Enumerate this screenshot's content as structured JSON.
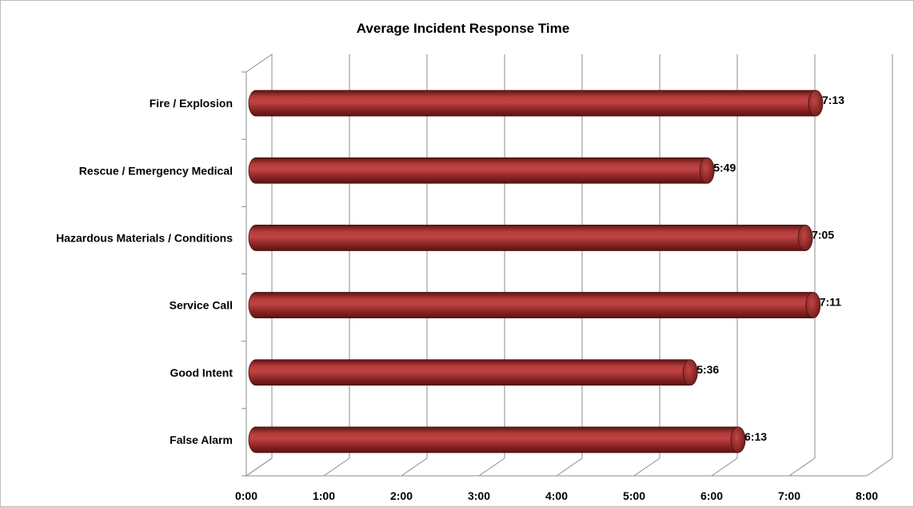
{
  "chart_data": {
    "type": "bar",
    "orientation": "horizontal",
    "style": "3d-cylinder",
    "title": "Average Incident Response Time",
    "xlabel": "",
    "ylabel": "",
    "categories": [
      "Fire / Explosion",
      "Rescue / Emergency Medical",
      "Hazardous Materials / Conditions",
      "Service Call",
      "Good Intent",
      "False Alarm"
    ],
    "values": [
      "7:13",
      "5:49",
      "7:05",
      "7:11",
      "5:36",
      "6:13"
    ],
    "data_labels": [
      "7:13",
      "5:49",
      "7:05",
      "7:11",
      "5:36",
      "6:13"
    ],
    "x_ticks": [
      "0:00",
      "1:00",
      "2:00",
      "3:00",
      "4:00",
      "5:00",
      "6:00",
      "7:00",
      "8:00"
    ],
    "xlim": [
      "0:00",
      "8:00"
    ],
    "grid": true,
    "legend": "none",
    "bar_color": "#9b2b2b"
  }
}
